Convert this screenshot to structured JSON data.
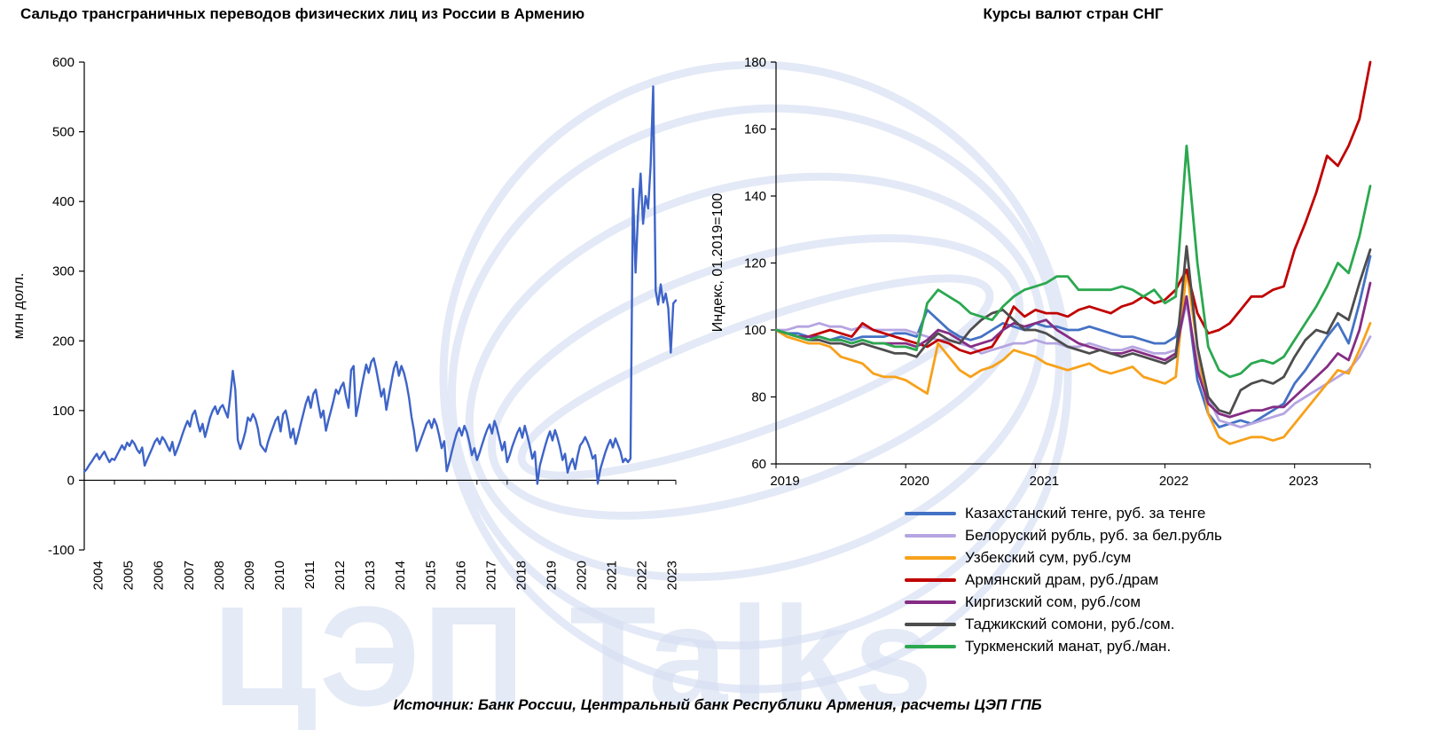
{
  "page": {
    "source_note": "Источник: Банк России, Центральный банк Республики Армения, расчеты ЦЭП ГПБ",
    "watermark_text": "ЦЭП Talks"
  },
  "chart_data": [
    {
      "type": "line",
      "title": "Сальдо трансграничных переводов физических лиц из России в Армению",
      "ylabel": "млн долл.",
      "ylim": [
        -100,
        600
      ],
      "yticks": [
        600,
        500,
        400,
        300,
        200,
        100,
        0,
        -100
      ],
      "x_tick_labels": [
        "2004",
        "2005",
        "2006",
        "2007",
        "2008",
        "2009",
        "2010",
        "2011",
        "2012",
        "2013",
        "2014",
        "2015",
        "2016",
        "2017",
        "2018",
        "2019",
        "2020",
        "2021",
        "2022",
        "2023"
      ],
      "frequency": "monthly",
      "x_range": "2004-01 .. 2023-08",
      "grid": false,
      "legend": false,
      "series": [
        {
          "name": "Сальдо трансграничных переводов, млн долл.",
          "color": "#3E64C8",
          "values": [
            12,
            16,
            22,
            27,
            33,
            38,
            30,
            36,
            41,
            33,
            26,
            31,
            29,
            36,
            43,
            50,
            44,
            54,
            49,
            57,
            52,
            44,
            39,
            47,
            21,
            30,
            38,
            46,
            55,
            60,
            52,
            62,
            57,
            49,
            42,
            55,
            36,
            45,
            55,
            66,
            76,
            85,
            77,
            94,
            100,
            84,
            70,
            81,
            62,
            76,
            90,
            100,
            106,
            95,
            104,
            108,
            99,
            90,
            120,
            157,
            130,
            58,
            45,
            56,
            70,
            90,
            85,
            95,
            88,
            74,
            51,
            46,
            41,
            55,
            66,
            76,
            86,
            91,
            70,
            95,
            100,
            84,
            61,
            74,
            52,
            66,
            81,
            95,
            110,
            120,
            104,
            124,
            130,
            109,
            90,
            100,
            71,
            86,
            100,
            114,
            130,
            124,
            134,
            140,
            119,
            104,
            158,
            164,
            92,
            110,
            130,
            149,
            166,
            154,
            170,
            175,
            159,
            139,
            120,
            131,
            101,
            121,
            141,
            160,
            170,
            150,
            164,
            154,
            139,
            119,
            91,
            71,
            42,
            51,
            61,
            71,
            81,
            86,
            75,
            88,
            79,
            64,
            46,
            56,
            13,
            26,
            41,
            55,
            68,
            75,
            64,
            78,
            69,
            54,
            36,
            46,
            29,
            39,
            51,
            62,
            72,
            80,
            67,
            85,
            74,
            59,
            43,
            55,
            26,
            36,
            48,
            58,
            68,
            75,
            61,
            78,
            64,
            49,
            31,
            41,
            -5,
            21,
            35,
            48,
            60,
            70,
            57,
            72,
            61,
            47,
            29,
            38,
            11,
            23,
            31,
            16,
            35,
            50,
            55,
            62,
            54,
            44,
            31,
            36,
            -4,
            16,
            28,
            40,
            50,
            58,
            47,
            60,
            51,
            41,
            26,
            31,
            26,
            31,
            418,
            298,
            382,
            440,
            368,
            408,
            390,
            452,
            565,
            272,
            252,
            281,
            255,
            268,
            247,
            183,
            254,
            258
          ]
        }
      ]
    },
    {
      "type": "line",
      "title": "Курсы валют стран СНГ",
      "ylabel": "Индекс, 01.2019=100",
      "ylim": [
        60,
        180
      ],
      "yticks": [
        180,
        160,
        140,
        120,
        100,
        80,
        60
      ],
      "x_tick_labels": [
        "2019",
        "2020",
        "2021",
        "2022",
        "2023"
      ],
      "frequency": "monthly",
      "x_range": "2019-01 .. 2023-08",
      "grid": false,
      "legend": true,
      "legend_position": "bottom",
      "series": [
        {
          "name": "Казахстанский тенге, руб. за тенге",
          "color": "#4472C4",
          "values": [
            100,
            99,
            99,
            98,
            98,
            97,
            98,
            97,
            98,
            98,
            98,
            99,
            99,
            98,
            106,
            103,
            100,
            98,
            97,
            98,
            100,
            102,
            101,
            100,
            102,
            101,
            101,
            100,
            100,
            101,
            100,
            99,
            98,
            98,
            97,
            96,
            96,
            98,
            110,
            85,
            75,
            71,
            72,
            73,
            72,
            74,
            76,
            78,
            84,
            88,
            93,
            98,
            102,
            96,
            108,
            122
          ]
        },
        {
          "name": "Белоруский рубль, руб. за бел.рубль",
          "color": "#B5A5E1",
          "values": [
            100,
            100,
            101,
            101,
            102,
            101,
            101,
            100,
            101,
            100,
            100,
            100,
            100,
            99,
            98,
            97,
            97,
            96,
            95,
            93,
            94,
            95,
            96,
            96,
            97,
            96,
            96,
            95,
            95,
            96,
            95,
            94,
            94,
            95,
            94,
            93,
            93,
            94,
            108,
            90,
            80,
            73,
            72,
            71,
            72,
            73,
            74,
            75,
            78,
            80,
            82,
            84,
            86,
            88,
            92,
            98
          ]
        },
        {
          "name": "Узбекский сум, руб./сум",
          "color": "#F7A11B",
          "values": [
            100,
            98,
            97,
            96,
            96,
            95,
            92,
            91,
            90,
            87,
            86,
            86,
            85,
            83,
            81,
            96,
            92,
            88,
            86,
            88,
            89,
            91,
            94,
            93,
            92,
            90,
            89,
            88,
            89,
            90,
            88,
            87,
            88,
            89,
            86,
            85,
            84,
            86,
            118,
            95,
            75,
            68,
            66,
            67,
            68,
            68,
            67,
            68,
            72,
            76,
            80,
            84,
            88,
            87,
            94,
            102
          ]
        },
        {
          "name": "Армянский драм, руб./драм",
          "color": "#C00000",
          "values": [
            100,
            99,
            98,
            98,
            99,
            100,
            99,
            98,
            102,
            100,
            99,
            98,
            97,
            96,
            95,
            97,
            96,
            94,
            93,
            94,
            95,
            100,
            107,
            104,
            106,
            105,
            105,
            104,
            106,
            107,
            106,
            105,
            107,
            108,
            110,
            108,
            109,
            112,
            118,
            105,
            99,
            100,
            102,
            106,
            110,
            110,
            112,
            113,
            124,
            132,
            141,
            152,
            149,
            155,
            163,
            180
          ]
        },
        {
          "name": "Киргизский сом, руб./сом",
          "color": "#852D84",
          "values": [
            100,
            99,
            98,
            98,
            98,
            97,
            97,
            96,
            97,
            96,
            96,
            96,
            96,
            95,
            97,
            100,
            99,
            97,
            95,
            96,
            97,
            100,
            102,
            101,
            102,
            103,
            100,
            98,
            96,
            95,
            94,
            93,
            93,
            94,
            93,
            92,
            91,
            93,
            110,
            88,
            78,
            75,
            74,
            75,
            76,
            76,
            77,
            77,
            80,
            83,
            86,
            89,
            93,
            91,
            100,
            114
          ]
        },
        {
          "name": "Таджикский сомони, руб./сом.",
          "color": "#4D4D4D",
          "values": [
            100,
            99,
            98,
            97,
            97,
            96,
            96,
            95,
            96,
            95,
            94,
            93,
            93,
            92,
            96,
            99,
            97,
            96,
            100,
            103,
            105,
            106,
            103,
            100,
            100,
            99,
            97,
            95,
            94,
            93,
            94,
            93,
            92,
            93,
            92,
            91,
            90,
            92,
            125,
            95,
            80,
            76,
            75,
            82,
            84,
            85,
            84,
            86,
            92,
            97,
            100,
            99,
            105,
            103,
            114,
            124
          ]
        },
        {
          "name": "Туркменский манат, руб./ман.",
          "color": "#2BA84F",
          "values": [
            100,
            99,
            98,
            97,
            98,
            97,
            97,
            96,
            97,
            96,
            96,
            95,
            95,
            94,
            108,
            112,
            110,
            108,
            105,
            104,
            103,
            107,
            110,
            112,
            113,
            114,
            116,
            116,
            112,
            112,
            112,
            112,
            113,
            112,
            110,
            112,
            108,
            110,
            155,
            120,
            95,
            88,
            86,
            87,
            90,
            91,
            90,
            92,
            97,
            102,
            107,
            113,
            120,
            117,
            128,
            143
          ]
        }
      ]
    }
  ]
}
